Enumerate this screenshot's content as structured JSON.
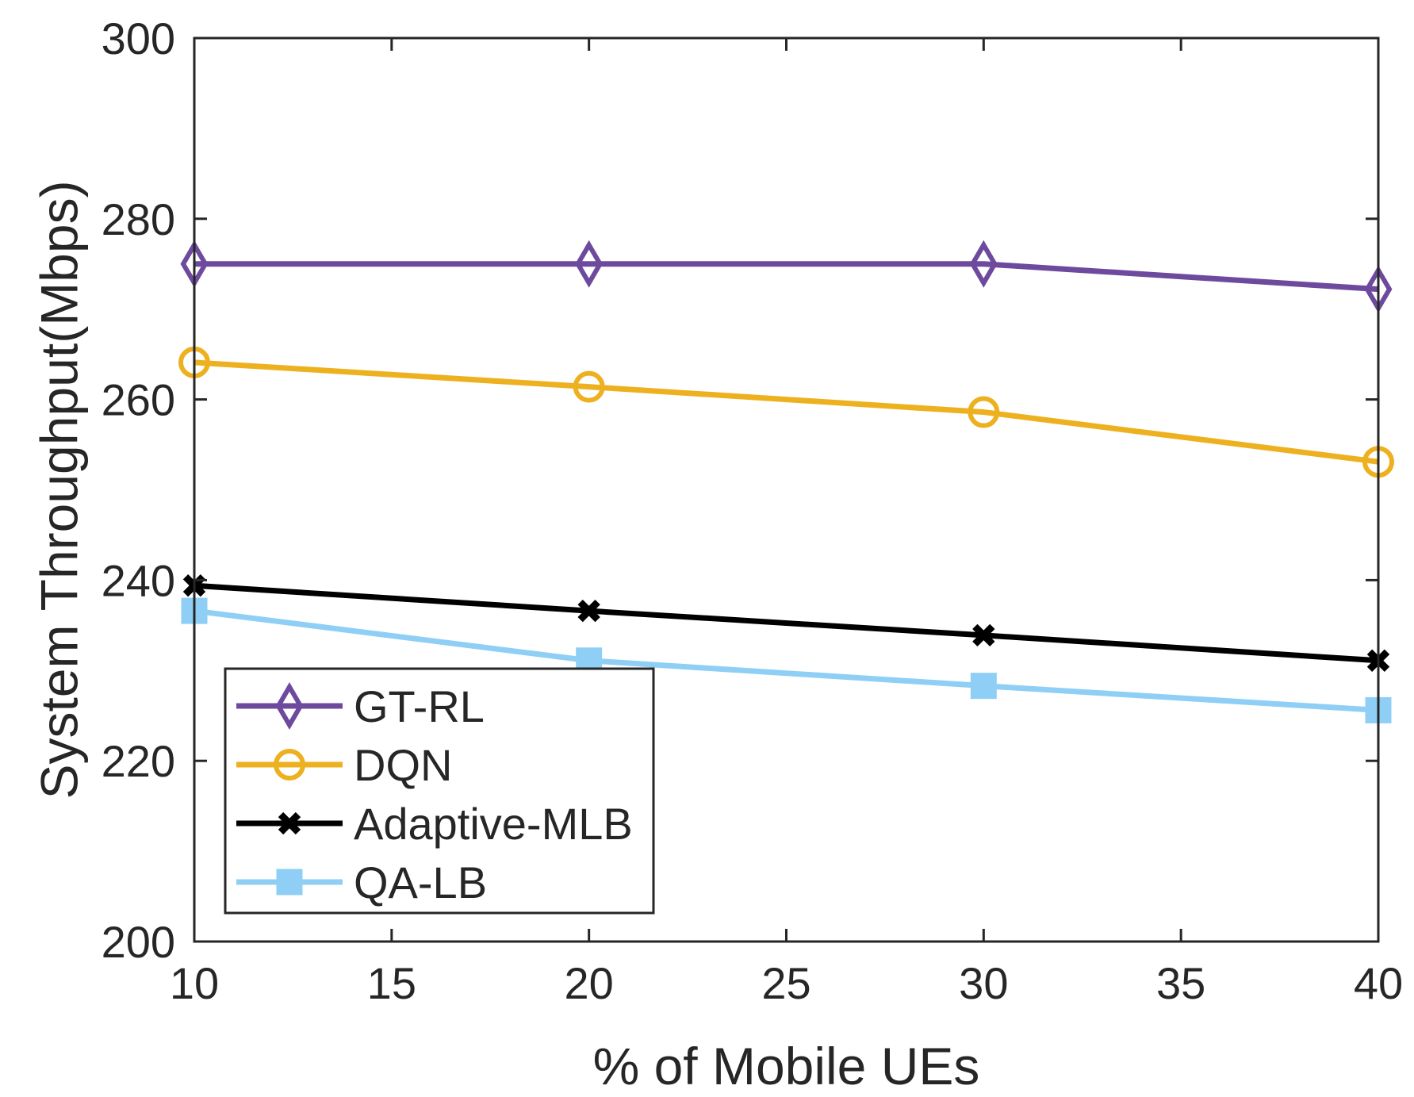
{
  "chart_data": {
    "type": "line",
    "title": "",
    "xlabel": "% of Mobile UEs",
    "ylabel": "System Throughput(Mbps)",
    "xlim": [
      10,
      40
    ],
    "ylim": [
      200,
      300
    ],
    "xticks": [
      10,
      15,
      20,
      25,
      30,
      35,
      40
    ],
    "yticks": [
      200,
      220,
      240,
      260,
      280,
      300
    ],
    "x": [
      10,
      20,
      30,
      40
    ],
    "series": [
      {
        "name": "GT-RL",
        "values": [
          275.0,
          275.0,
          275.0,
          272.2
        ],
        "color": "#6E4A9E",
        "marker": "diamond"
      },
      {
        "name": "DQN",
        "values": [
          264.1,
          261.4,
          258.6,
          253.1
        ],
        "color": "#EDB120",
        "marker": "circle"
      },
      {
        "name": "Adaptive-MLB",
        "values": [
          239.4,
          236.6,
          233.9,
          231.1
        ],
        "color": "#000000",
        "marker": "x"
      },
      {
        "name": "QA-LB",
        "values": [
          236.6,
          231.1,
          228.3,
          225.6
        ],
        "color": "#8FCFF5",
        "marker": "square"
      }
    ],
    "legend": {
      "location": "bottom-left"
    },
    "grid": false
  }
}
